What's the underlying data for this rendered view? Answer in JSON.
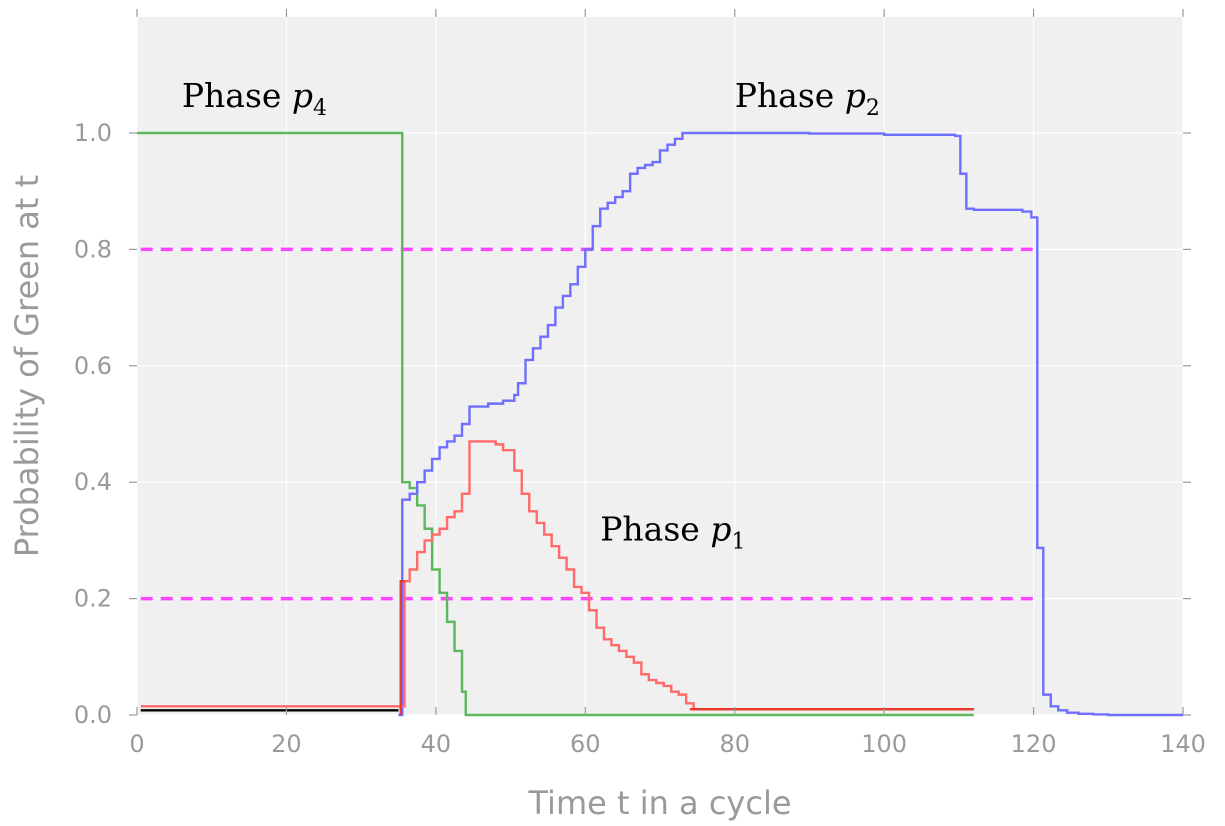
{
  "chart_data": {
    "type": "line",
    "title": "",
    "xlabel": "Time t in a cycle",
    "ylabel": "Probability of Green at t",
    "xlim": [
      0,
      140
    ],
    "ylim": [
      0.0,
      1.0
    ],
    "xticks": [
      0,
      20,
      40,
      60,
      80,
      100,
      120,
      140
    ],
    "xtick_labels": [
      "0",
      "20",
      "40",
      "60",
      "80",
      "100",
      "120",
      "140"
    ],
    "yticks": [
      0.0,
      0.2,
      0.4,
      0.6,
      0.8,
      1.0
    ],
    "ytick_labels": [
      "0.0",
      "0.2",
      "0.4",
      "0.6",
      "0.8",
      "1.0"
    ],
    "grid": true,
    "background": "#f0f0f0",
    "annotations": [
      {
        "text": "Phase",
        "symbol": "p",
        "subscript": "4",
        "x": 6,
        "y": 1.045
      },
      {
        "text": "Phase",
        "symbol": "p",
        "subscript": "2",
        "x": 80,
        "y": 1.045
      },
      {
        "text": "Phase",
        "symbol": "p",
        "subscript": "1",
        "x": 62,
        "y": 0.3
      }
    ],
    "reference_lines": [
      {
        "y": 0.8,
        "x_start": 0.5,
        "x_end": 120,
        "color": "#ff44ff",
        "style": "dashed"
      },
      {
        "y": 0.2,
        "x_start": 0.5,
        "x_end": 120,
        "color": "#ff44ff",
        "style": "dashed"
      }
    ],
    "series": [
      {
        "color": "#5cb85c",
        "step": true,
        "x": [
          0,
          35,
          35.5,
          36.5,
          37.5,
          38.5,
          39.5,
          40.5,
          41.5,
          42.5,
          43.5,
          44,
          112
        ],
        "y": [
          1.0,
          1.0,
          0.4,
          0.39,
          0.36,
          0.32,
          0.25,
          0.21,
          0.16,
          0.11,
          0.04,
          0.0,
          0.0
        ]
      },
      {
        "color": "#6f6fff",
        "step": true,
        "x": [
          35,
          35.5,
          36.5,
          37.5,
          38.5,
          39.5,
          40.5,
          41.5,
          42.5,
          43.5,
          44.5,
          47,
          49,
          50.5,
          51,
          52,
          53,
          54,
          55,
          56,
          57,
          58,
          59,
          60,
          61,
          62,
          63,
          64,
          65,
          66,
          67,
          68,
          69,
          70,
          71,
          72,
          73,
          74,
          80,
          90,
          100,
          109.5,
          110.2,
          111,
          112,
          118.5,
          119.7,
          120.5,
          121.3,
          122.3,
          123.3,
          124.5,
          126,
          128,
          130,
          140
        ],
        "y": [
          0.0,
          0.37,
          0.38,
          0.4,
          0.42,
          0.44,
          0.46,
          0.47,
          0.48,
          0.5,
          0.53,
          0.535,
          0.54,
          0.55,
          0.57,
          0.61,
          0.63,
          0.65,
          0.67,
          0.7,
          0.72,
          0.74,
          0.77,
          0.8,
          0.84,
          0.87,
          0.88,
          0.89,
          0.9,
          0.93,
          0.94,
          0.945,
          0.95,
          0.97,
          0.98,
          0.99,
          1.0,
          1.0,
          1.0,
          0.999,
          0.997,
          0.995,
          0.93,
          0.87,
          0.868,
          0.865,
          0.855,
          0.287,
          0.035,
          0.015,
          0.008,
          0.004,
          0.002,
          0.001,
          0.0,
          0.0
        ]
      },
      {
        "color": "#ff6b6b",
        "step": true,
        "x": [
          0.5,
          35,
          35.8,
          36.5,
          37.5,
          38.5,
          39.5,
          40.5,
          41.5,
          42.5,
          43.5,
          44.5,
          48,
          49,
          50.5,
          51.5,
          52.5,
          53.5,
          54.5,
          55.5,
          56.5,
          57.5,
          58.5,
          59.5,
          60.5,
          61.5,
          62.5,
          63.5,
          64.5,
          65.5,
          66.5,
          67.5,
          68.5,
          69.5,
          70.5,
          71.5,
          72.5,
          73.5,
          74.5,
          112
        ],
        "y": [
          0.015,
          0.015,
          0.23,
          0.25,
          0.28,
          0.3,
          0.31,
          0.32,
          0.34,
          0.35,
          0.38,
          0.47,
          0.465,
          0.455,
          0.42,
          0.38,
          0.35,
          0.33,
          0.31,
          0.29,
          0.27,
          0.25,
          0.22,
          0.21,
          0.18,
          0.15,
          0.13,
          0.12,
          0.11,
          0.1,
          0.09,
          0.07,
          0.06,
          0.055,
          0.05,
          0.04,
          0.035,
          0.02,
          0.01,
          0.01
        ]
      },
      {
        "color": "#e8392a",
        "step": true,
        "x": [
          74,
          112
        ],
        "y": [
          0.01,
          0.01
        ]
      },
      {
        "color": "#000000",
        "step": true,
        "x": [
          0.5,
          35
        ],
        "y": [
          0.008,
          0.008
        ]
      },
      {
        "color": "#e8392a",
        "step": true,
        "x": [
          35.3,
          35.3,
          35.8
        ],
        "y": [
          0.0,
          0.23,
          0.23
        ]
      }
    ]
  }
}
